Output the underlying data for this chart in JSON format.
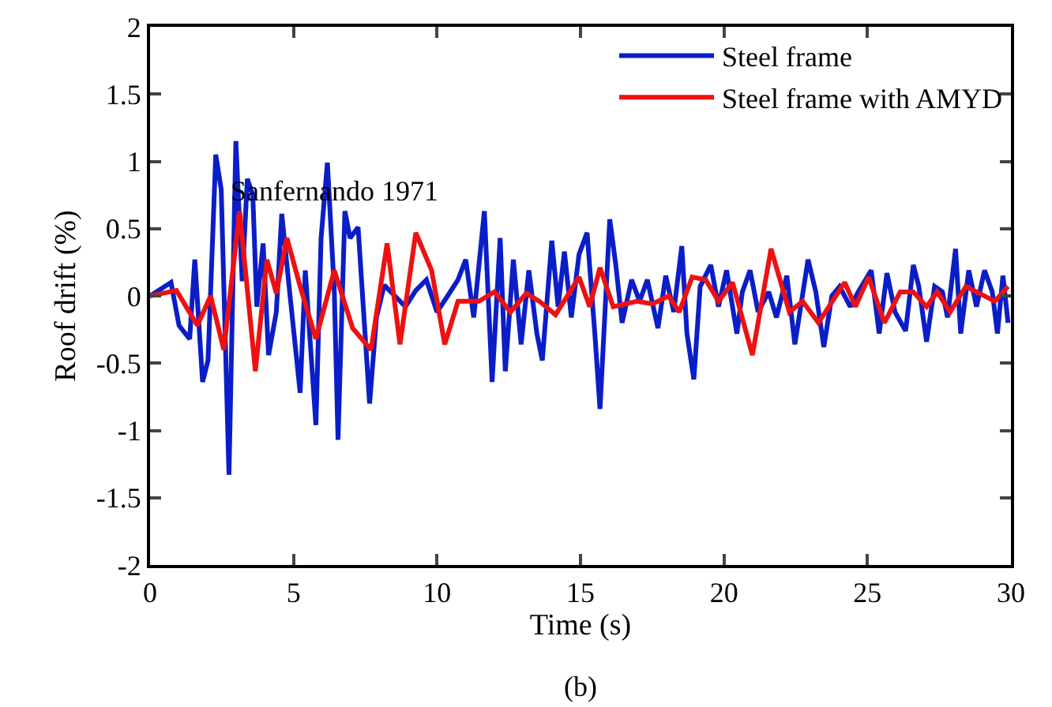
{
  "chart_data": {
    "type": "line",
    "xlabel": "Time (s)",
    "ylabel": "Roof drift (%)",
    "annotations": [
      "Sanfernando 1971",
      "(b)"
    ],
    "xlim": [
      0,
      30
    ],
    "xticks": [
      0,
      5,
      10,
      15,
      20,
      25,
      30
    ],
    "ylim": [
      -2,
      2
    ],
    "yticks": [
      -2,
      -1.5,
      -1,
      -0.5,
      0,
      0.5,
      1,
      1.5,
      2
    ],
    "grid": false,
    "legend": "top right",
    "line_style": "solid",
    "marker": "none",
    "series": [
      {
        "name": "Steel frame",
        "color": "#0a1ec8",
        "x": [
          0,
          0.73,
          1.01,
          1.38,
          1.56,
          1.83,
          2.02,
          2.29,
          2.48,
          2.75,
          2.99,
          3.21,
          3.39,
          3.58,
          3.72,
          3.94,
          4.13,
          4.4,
          4.59,
          4.86,
          5.23,
          5.41,
          5.78,
          5.96,
          6.18,
          6.42,
          6.55,
          6.79,
          6.97,
          7.25,
          7.43,
          7.65,
          7.89,
          8.16,
          8.53,
          8.9,
          9.26,
          9.63,
          10.0,
          10.37,
          10.73,
          11.0,
          11.28,
          11.65,
          11.92,
          12.2,
          12.38,
          12.66,
          12.93,
          13.2,
          13.48,
          13.67,
          14.0,
          14.22,
          14.44,
          14.68,
          14.95,
          15.23,
          15.5,
          15.68,
          16.02,
          16.23,
          16.45,
          16.78,
          17.06,
          17.33,
          17.7,
          17.97,
          18.25,
          18.53,
          18.71,
          18.95,
          19.17,
          19.54,
          19.81,
          20.09,
          20.45,
          20.64,
          20.91,
          21.19,
          21.56,
          21.83,
          22.19,
          22.47,
          22.93,
          23.2,
          23.48,
          23.76,
          24.03,
          24.4,
          24.68,
          25.13,
          25.41,
          25.68,
          25.96,
          26.33,
          26.6,
          26.79,
          27.06,
          27.34,
          27.61,
          27.79,
          28.07,
          28.25,
          28.53,
          28.8,
          29.08,
          29.35,
          29.53,
          29.72,
          29.9
        ],
        "values": [
          0,
          0.1,
          -0.22,
          -0.32,
          0.27,
          -0.64,
          -0.48,
          1.05,
          0.79,
          -1.33,
          1.15,
          0.11,
          0.87,
          0.75,
          -0.08,
          0.39,
          -0.44,
          -0.12,
          0.61,
          0.04,
          -0.72,
          0.19,
          -0.96,
          0.43,
          0.99,
          0.04,
          -1.07,
          0.63,
          0.43,
          0.51,
          -0.08,
          -0.8,
          -0.16,
          0.08,
          0,
          -0.08,
          0.04,
          0.12,
          -0.12,
          0,
          0.12,
          0.27,
          -0.16,
          0.63,
          -0.64,
          0.43,
          -0.56,
          0.27,
          -0.36,
          0.19,
          -0.28,
          -0.48,
          0.41,
          -0.08,
          0.33,
          -0.16,
          0.31,
          0.47,
          -0.28,
          -0.84,
          0.57,
          0.23,
          -0.2,
          0.12,
          -0.04,
          0.12,
          -0.24,
          0.15,
          -0.12,
          0.37,
          -0.28,
          -0.62,
          0.07,
          0.23,
          -0.08,
          0.19,
          -0.28,
          0.03,
          0.19,
          -0.12,
          0.03,
          -0.16,
          0.15,
          -0.36,
          0.27,
          0.03,
          -0.38,
          0,
          0.07,
          -0.08,
          0.03,
          0.19,
          -0.28,
          0.17,
          -0.12,
          -0.26,
          0.23,
          0.07,
          -0.34,
          0.07,
          0.03,
          -0.16,
          0.35,
          -0.28,
          0.19,
          -0.08,
          0.19,
          0.03,
          -0.28,
          0.15,
          -0.2
        ]
      },
      {
        "name": "Steel frame with AMYD",
        "color": "#ee1111",
        "x": [
          0,
          0.92,
          1.65,
          2.11,
          2.57,
          3.12,
          3.67,
          4.07,
          4.4,
          4.77,
          5.23,
          5.78,
          6.42,
          7.06,
          7.7,
          8.26,
          8.71,
          9.26,
          9.81,
          10.27,
          10.73,
          11.46,
          12.0,
          12.56,
          13.11,
          13.57,
          14.13,
          14.95,
          15.32,
          15.68,
          16.14,
          16.97,
          17.52,
          18.07,
          18.44,
          18.89,
          19.36,
          19.81,
          20.3,
          20.99,
          21.64,
          22.28,
          22.74,
          23.29,
          24.21,
          24.58,
          25.04,
          25.59,
          26.14,
          26.6,
          27.06,
          27.43,
          27.88,
          28.43,
          28.89,
          29.44,
          29.9
        ],
        "values": [
          0,
          0.04,
          -0.22,
          0,
          -0.4,
          0.63,
          -0.56,
          0.27,
          0.02,
          0.43,
          0.07,
          -0.32,
          0.19,
          -0.24,
          -0.4,
          0.39,
          -0.36,
          0.47,
          0.19,
          -0.36,
          -0.04,
          -0.04,
          0.03,
          -0.12,
          0.02,
          -0.04,
          -0.14,
          0.14,
          -0.08,
          0.21,
          -0.08,
          -0.04,
          -0.06,
          0,
          -0.12,
          0.14,
          0.12,
          -0.04,
          0.1,
          -0.44,
          0.35,
          -0.12,
          -0.04,
          -0.2,
          0.1,
          -0.08,
          0.14,
          -0.2,
          0.03,
          0.03,
          -0.08,
          0.03,
          -0.12,
          0.07,
          0.02,
          -0.04,
          0.07
        ]
      }
    ]
  }
}
